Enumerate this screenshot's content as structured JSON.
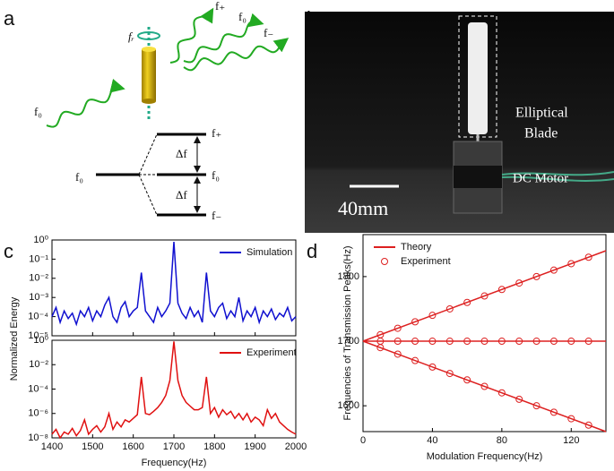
{
  "panel_labels": [
    "a",
    "b",
    "c",
    "d"
  ],
  "diagram": {
    "incoming": "f₀",
    "rotation": "fᵣ",
    "outgoing": [
      "f₊",
      "f₀",
      "f₋"
    ],
    "level_left": "f₀",
    "levels": [
      "f₊",
      "f₀",
      "f₋"
    ],
    "gaps": [
      "Δf",
      "Δf"
    ]
  },
  "photo": {
    "blade": [
      "Elliptical",
      "Blade"
    ],
    "motor": "DC Motor",
    "scale": "40mm"
  },
  "chart_data": [
    {
      "type": "line",
      "log_y": true,
      "ylabel": "Normalized Energy",
      "legend": "upper right",
      "x": [
        1400,
        1410,
        1420,
        1430,
        1440,
        1450,
        1460,
        1470,
        1480,
        1490,
        1500,
        1510,
        1520,
        1530,
        1540,
        1550,
        1560,
        1570,
        1580,
        1590,
        1600,
        1610,
        1620,
        1630,
        1640,
        1650,
        1660,
        1670,
        1680,
        1690,
        1700,
        1710,
        1720,
        1730,
        1740,
        1750,
        1760,
        1770,
        1780,
        1790,
        1800,
        1810,
        1820,
        1830,
        1840,
        1850,
        1860,
        1870,
        1880,
        1890,
        1900,
        1910,
        1920,
        1930,
        1940,
        1950,
        1960,
        1970,
        1980,
        1990,
        2000
      ],
      "xlim": [
        1400,
        2000
      ],
      "xticks": [
        1400,
        1500,
        1600,
        1700,
        1800,
        1900,
        2000
      ],
      "ylim": [
        1e-05,
        1
      ],
      "yticks": [
        {
          "value": 1,
          "label": "10⁰"
        },
        {
          "value": 0.1,
          "label": "10⁻¹"
        },
        {
          "value": 0.01,
          "label": "10⁻²"
        },
        {
          "value": 0.001,
          "label": "10⁻³"
        },
        {
          "value": 0.0001,
          "label": "10⁻⁴"
        },
        {
          "value": 1e-05,
          "label": "10⁻⁵"
        }
      ],
      "series": [
        {
          "name": "Simulation",
          "color": "#1010d0",
          "values": [
            0.0001,
            0.0003,
            5e-05,
            0.0002,
            8e-05,
            0.00015,
            4e-05,
            0.0002,
            0.0001,
            0.0003,
            6e-05,
            0.0002,
            0.0001,
            0.0004,
            0.001,
            0.0001,
            5e-05,
            0.0003,
            0.0006,
            0.0001,
            0.0002,
            0.0003,
            0.02,
            0.0002,
            0.0001,
            5e-05,
            0.0003,
            0.0001,
            0.0002,
            0.0005,
            0.8,
            0.0005,
            0.00015,
            8e-05,
            0.0003,
            0.0001,
            0.0002,
            5e-05,
            0.02,
            0.0002,
            0.0001,
            0.0003,
            0.0005,
            8e-05,
            0.0002,
            0.0001,
            0.001,
            6e-05,
            0.0002,
            0.0001,
            0.0003,
            5e-05,
            0.0002,
            0.0001,
            0.00025,
            7e-05,
            0.00015,
            0.0001,
            0.0003,
            6e-05,
            0.0001
          ]
        }
      ]
    },
    {
      "type": "line",
      "log_y": true,
      "xlabel": "Frequency(Hz)",
      "legend": "upper right",
      "x": [
        1400,
        1410,
        1420,
        1430,
        1440,
        1450,
        1460,
        1470,
        1480,
        1490,
        1500,
        1510,
        1520,
        1530,
        1540,
        1550,
        1560,
        1570,
        1580,
        1590,
        1600,
        1610,
        1620,
        1630,
        1640,
        1650,
        1660,
        1670,
        1680,
        1690,
        1700,
        1710,
        1720,
        1730,
        1740,
        1750,
        1760,
        1770,
        1780,
        1790,
        1800,
        1810,
        1820,
        1830,
        1840,
        1850,
        1860,
        1870,
        1880,
        1890,
        1900,
        1910,
        1920,
        1930,
        1940,
        1950,
        1960,
        1970,
        1980,
        1990,
        2000
      ],
      "xlim": [
        1400,
        2000
      ],
      "xticks": [
        1400,
        1500,
        1600,
        1700,
        1800,
        1900,
        2000
      ],
      "ylim": [
        1e-08,
        1
      ],
      "yticks": [
        {
          "value": 1,
          "label": "10⁰"
        },
        {
          "value": 0.01,
          "label": "10⁻²"
        },
        {
          "value": 0.0001,
          "label": "10⁻⁴"
        },
        {
          "value": 1e-06,
          "label": "10⁻⁶"
        },
        {
          "value": 1e-08,
          "label": "10⁻⁸"
        }
      ],
      "series": [
        {
          "name": "Experiment",
          "color": "#e01010",
          "values": [
            2e-08,
            5e-08,
            1e-08,
            3e-08,
            2e-08,
            6e-08,
            1.5e-08,
            4e-08,
            3e-07,
            2e-08,
            5e-08,
            1e-07,
            3e-08,
            8e-08,
            1e-06,
            5e-08,
            2e-07,
            8e-08,
            3e-07,
            2e-07,
            4e-07,
            8e-07,
            0.001,
            1e-06,
            8e-07,
            1.5e-06,
            3e-06,
            8e-06,
            3e-05,
            0.0005,
            0.8,
            0.0005,
            3e-05,
            8e-06,
            4e-06,
            2e-06,
            2e-06,
            3e-06,
            0.001,
            1e-06,
            3e-06,
            5e-07,
            2e-06,
            8e-07,
            1.5e-06,
            4e-07,
            1e-06,
            3e-07,
            1e-06,
            2e-07,
            5e-07,
            3e-07,
            1e-07,
            2e-06,
            4e-07,
            1e-06,
            2e-07,
            1e-07,
            5e-08,
            3e-08,
            2e-08
          ]
        }
      ]
    },
    {
      "type": "line",
      "xlabel": "Modulation Frequency(Hz)",
      "ylabel": "Frequencies of Transmission Peaks(Hz)",
      "legend": "upper left",
      "xlim": [
        0,
        140
      ],
      "xticks": [
        0,
        40,
        80,
        120
      ],
      "ylim": [
        1560,
        1865
      ],
      "yticks": [
        1600,
        1700,
        1800
      ],
      "series": [
        {
          "name": "Theory",
          "type": "line",
          "color": "#dd2020",
          "x": [
            0,
            140,
            null,
            0,
            140,
            null,
            0,
            140
          ],
          "values": [
            1700,
            1840,
            null,
            1700,
            1700,
            null,
            1700,
            1560
          ]
        },
        {
          "name": "Experiment",
          "type": "scatter",
          "color": "#dd2020",
          "x": [
            10,
            20,
            30,
            40,
            50,
            60,
            70,
            80,
            90,
            100,
            110,
            120,
            130,
            10,
            20,
            30,
            40,
            50,
            60,
            70,
            80,
            90,
            100,
            110,
            120,
            130,
            10,
            20,
            30,
            40,
            50,
            60,
            70,
            80,
            90,
            100,
            110,
            120,
            130
          ],
          "values": [
            1710,
            1720,
            1730,
            1740,
            1750,
            1760,
            1770,
            1780,
            1790,
            1800,
            1810,
            1820,
            1830,
            1700,
            1700,
            1700,
            1700,
            1700,
            1700,
            1700,
            1700,
            1700,
            1700,
            1700,
            1700,
            1700,
            1690,
            1680,
            1670,
            1660,
            1650,
            1640,
            1630,
            1620,
            1610,
            1600,
            1590,
            1580,
            1570
          ]
        }
      ]
    }
  ]
}
